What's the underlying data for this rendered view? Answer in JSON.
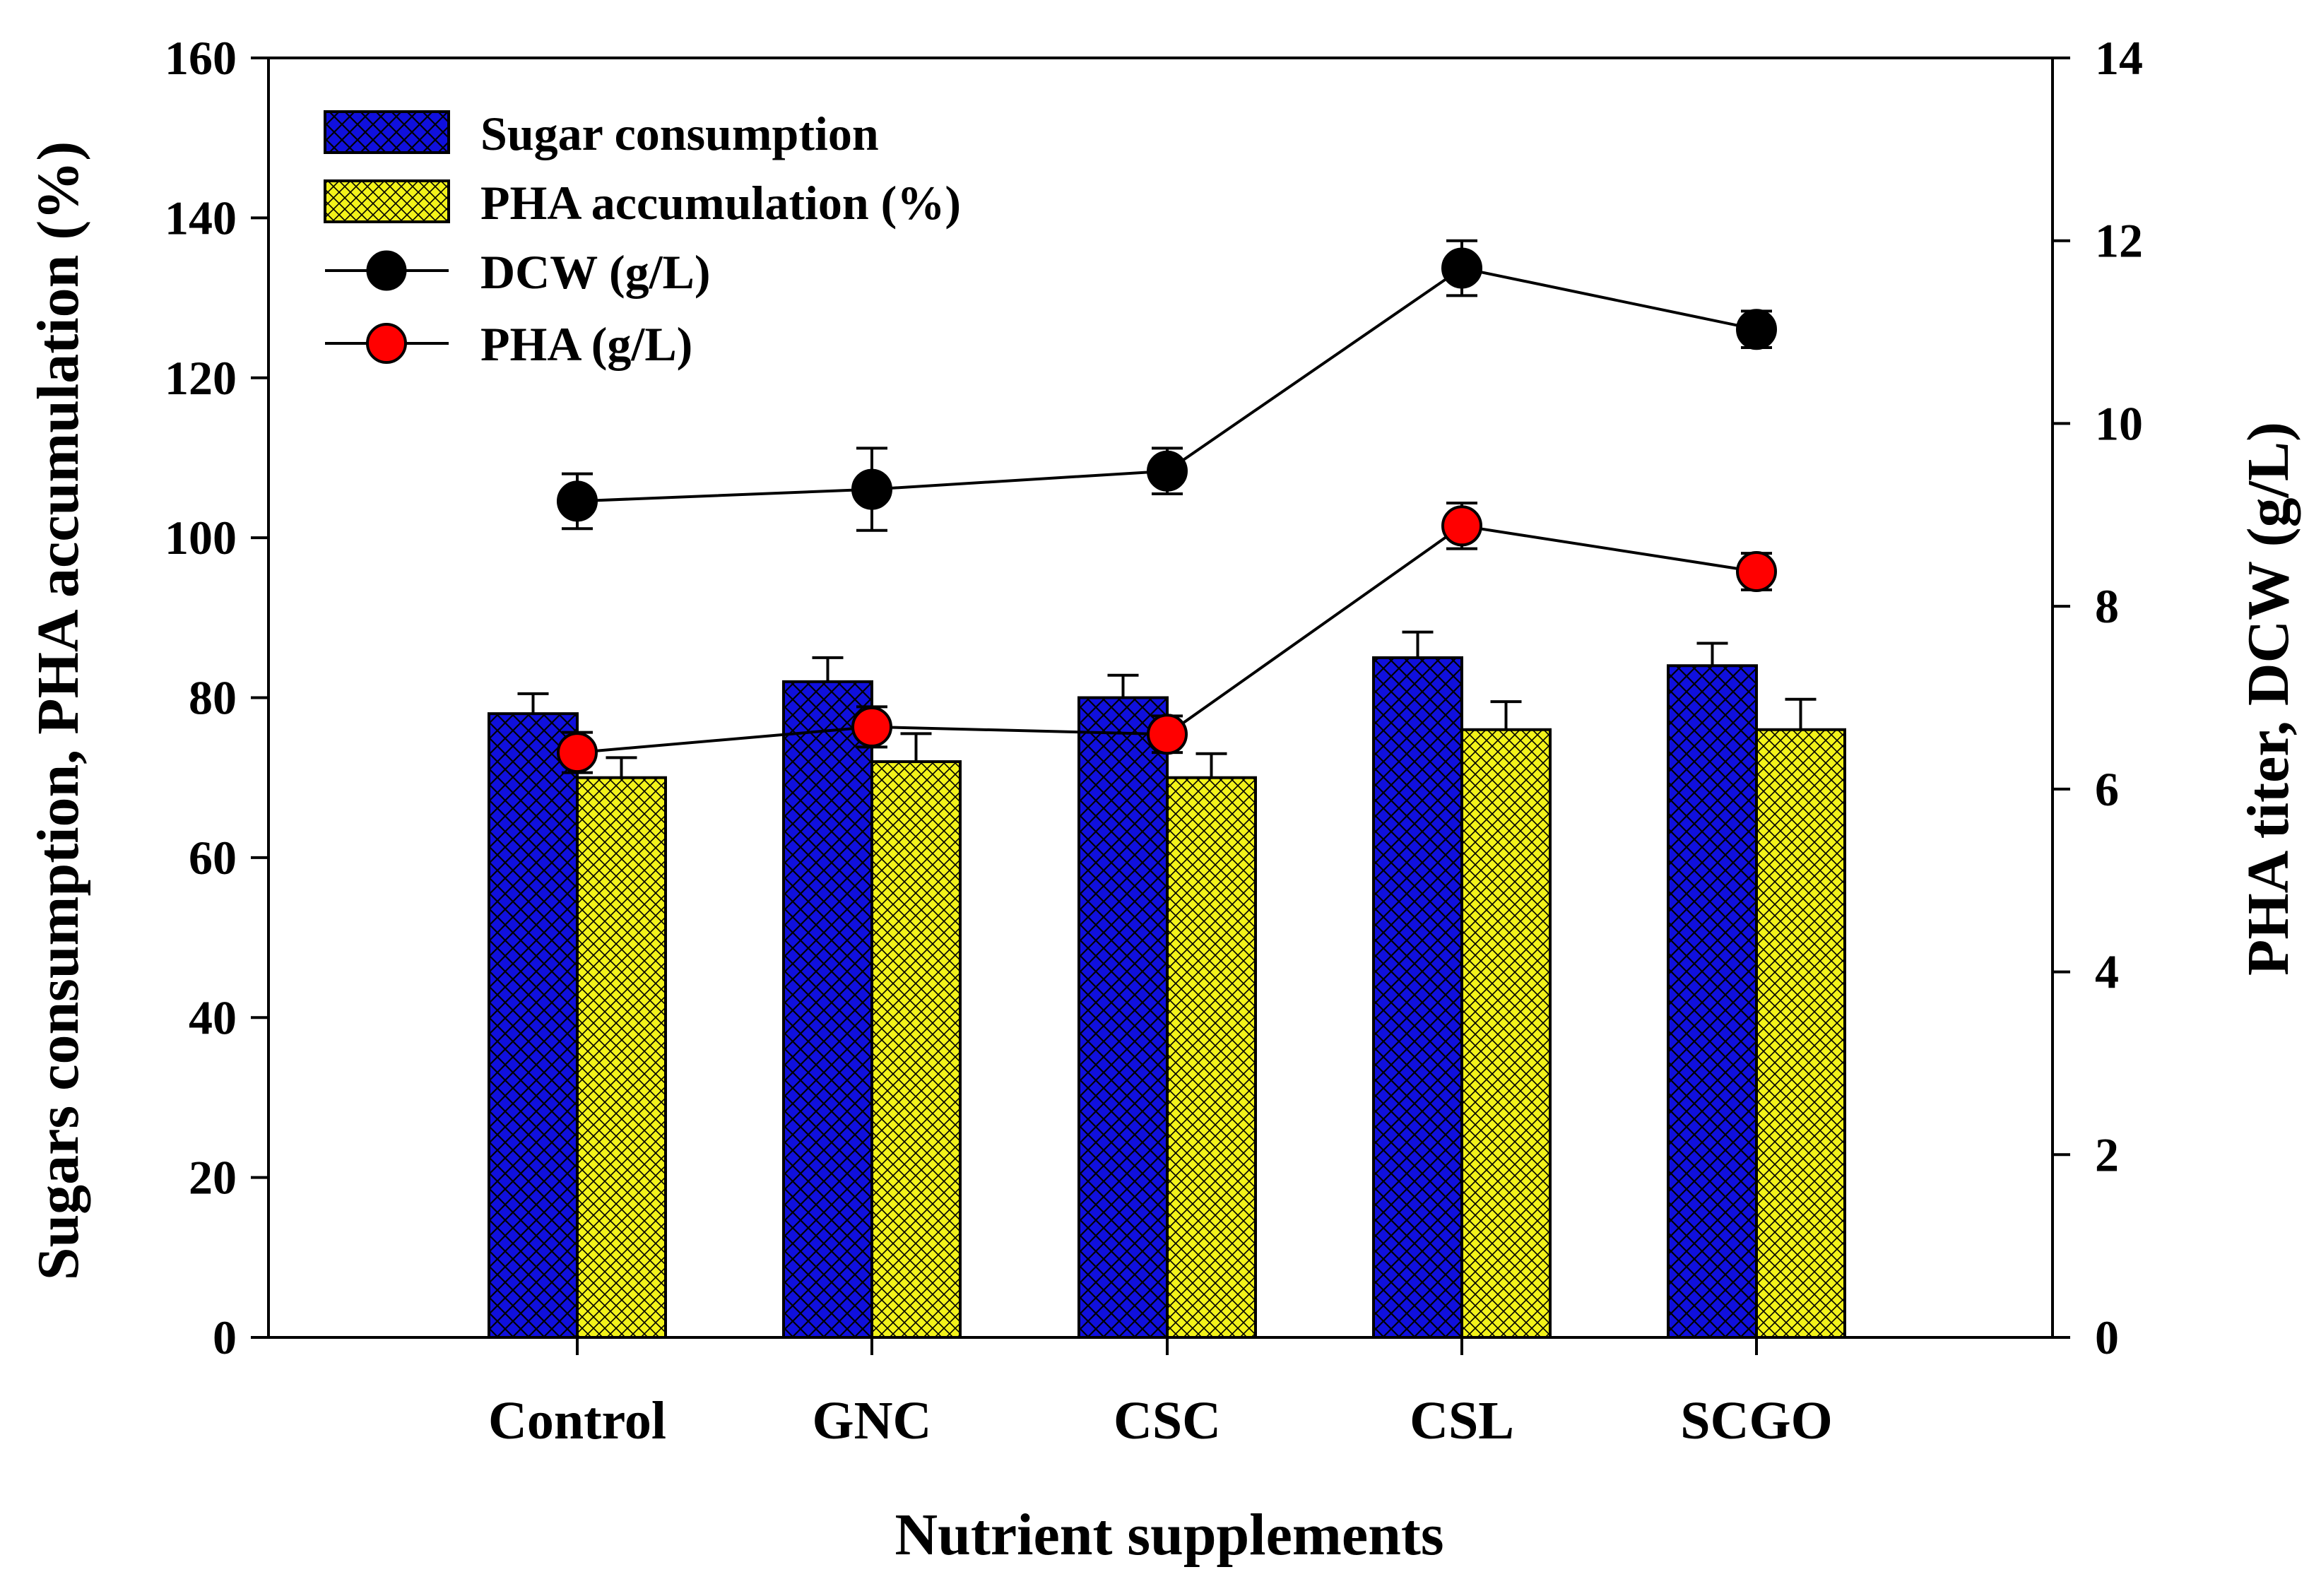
{
  "chart_data": {
    "type": "bar",
    "title": "",
    "xlabel": "Nutrient supplements",
    "ylabel": "Sugars consumption, PHA accumulation (%)",
    "y2label": "PHA titer, DCW (g/L)",
    "ylim": [
      0,
      160
    ],
    "y2lim": [
      0,
      14
    ],
    "yticks": [
      "0",
      "20",
      "40",
      "60",
      "80",
      "100",
      "120",
      "140",
      "160"
    ],
    "y2ticks": [
      "0",
      "2",
      "4",
      "6",
      "8",
      "10",
      "12",
      "14"
    ],
    "categories": [
      "Control",
      "GNC",
      "CSC",
      "CSL",
      "SCGO"
    ],
    "legend_position": "top-left",
    "grid": false,
    "colors": {
      "sugar": "#1010dd",
      "pha_acc": "#f2f21a",
      "dcw": "#000000",
      "pha_gl": "#ff0000"
    },
    "series": [
      {
        "name": "Sugar consumption",
        "kind": "bar",
        "axis": "left",
        "values": [
          78,
          82,
          80,
          85,
          84
        ],
        "errors": [
          2.5,
          3,
          2.8,
          3.2,
          2.8
        ]
      },
      {
        "name": "PHA accumulation (%)",
        "kind": "bar",
        "axis": "left",
        "values": [
          70,
          72,
          70,
          76,
          76
        ],
        "errors": [
          2.5,
          3.5,
          3,
          3.5,
          3.8
        ]
      },
      {
        "name": "DCW (g/L)",
        "kind": "line",
        "axis": "right",
        "values": [
          9.15,
          9.28,
          9.48,
          11.7,
          11.03
        ],
        "errors": [
          0.3,
          0.45,
          0.25,
          0.3,
          0.2
        ]
      },
      {
        "name": "PHA (g/L)",
        "kind": "line",
        "axis": "right",
        "values": [
          6.4,
          6.68,
          6.6,
          8.88,
          8.38
        ],
        "errors": [
          0.22,
          0.22,
          0.2,
          0.25,
          0.2
        ]
      }
    ]
  }
}
